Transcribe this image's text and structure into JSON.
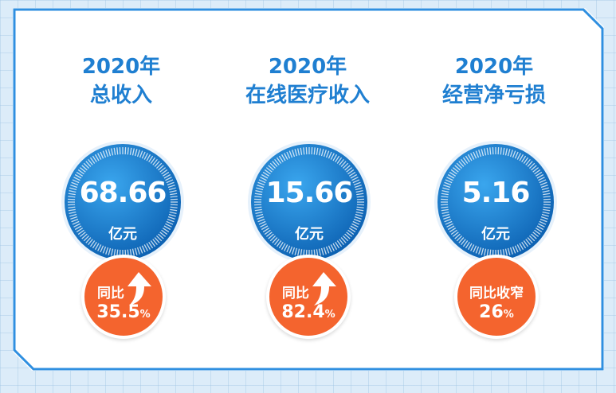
{
  "chart_data": {
    "type": "table",
    "metrics": [
      {
        "year": "2020年",
        "name": "总收入",
        "value": "68.66",
        "unit": "亿元",
        "change_label": "同比",
        "change_value": "35.5",
        "change_unit": "%",
        "direction": "up"
      },
      {
        "year": "2020年",
        "name": "在线医疗收入",
        "value": "15.66",
        "unit": "亿元",
        "change_label": "同比",
        "change_value": "82.4",
        "change_unit": "%",
        "direction": "up"
      },
      {
        "year": "2020年",
        "name": "经营净亏损",
        "value": "5.16",
        "unit": "亿元",
        "change_label": "同比收窄",
        "change_value": "26",
        "change_unit": "%",
        "direction": "none"
      }
    ]
  },
  "icons": {
    "up": "up-arrow-icon"
  },
  "colors": {
    "title_blue": "#1f7fd1",
    "dial_blue": "#1a7fd0",
    "badge_orange": "#f4642e",
    "frame_blue": "#2f8fe0"
  }
}
